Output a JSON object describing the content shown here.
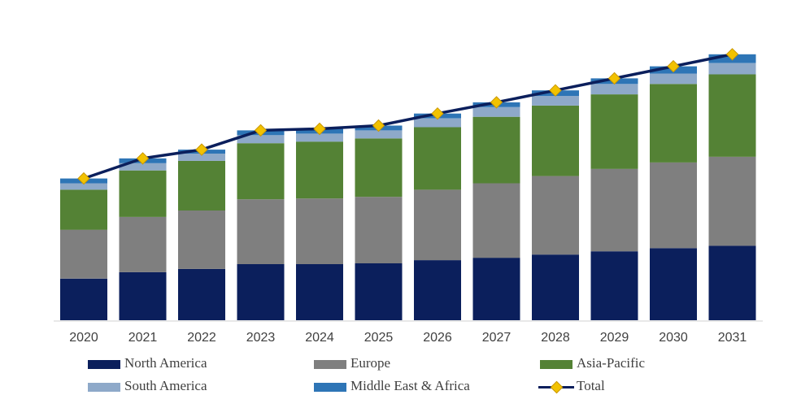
{
  "chart_data": {
    "type": "bar",
    "stacked": true,
    "categories": [
      "2020",
      "2021",
      "2022",
      "2023",
      "2024",
      "2025",
      "2026",
      "2027",
      "2028",
      "2029",
      "2030",
      "2031"
    ],
    "series": [
      {
        "name": "North America",
        "color": "#0B1F5C",
        "values": [
          52,
          60,
          64,
          70,
          70,
          71,
          75,
          78,
          82,
          86,
          90,
          93
        ]
      },
      {
        "name": "Europe",
        "color": "#7F7F7F",
        "values": [
          61,
          69,
          73,
          81,
          82,
          83,
          88,
          93,
          98,
          103,
          107,
          111
        ]
      },
      {
        "name": "Asia-Pacific",
        "color": "#548235",
        "values": [
          50,
          58,
          62,
          70,
          71,
          73,
          78,
          83,
          88,
          93,
          98,
          103
        ]
      },
      {
        "name": "South America",
        "color": "#8EA9C9",
        "values": [
          8,
          9,
          9,
          10,
          10,
          10,
          11,
          12,
          12,
          13,
          13,
          14
        ]
      },
      {
        "name": "Middle East & Africa",
        "color": "#2E75B6",
        "values": [
          6,
          6,
          5,
          6,
          6,
          6,
          6,
          6,
          7,
          7,
          9,
          11
        ]
      }
    ],
    "line": {
      "name": "Total",
      "color": "#0B1F5C",
      "marker_color": "#F2C200",
      "values": [
        177,
        202,
        213,
        237,
        239,
        243,
        258,
        272,
        287,
        302,
        317,
        332
      ]
    },
    "title": "",
    "xlabel": "",
    "ylabel": "",
    "ylim": [
      0,
      345
    ],
    "grid": false,
    "legend_position": "bottom"
  }
}
